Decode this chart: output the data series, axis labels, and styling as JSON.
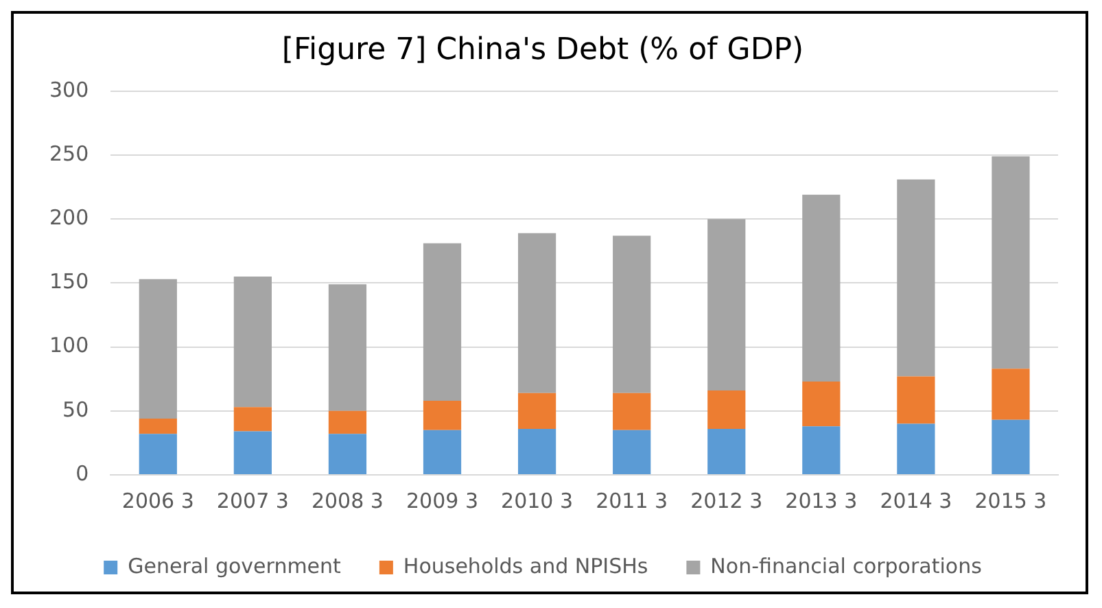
{
  "chart_data": {
    "type": "bar",
    "title": "[Figure 7] China's Debt (% of GDP)",
    "categories": [
      "2006 3",
      "2007 3",
      "2008 3",
      "2009 3",
      "2010 3",
      "2011 3",
      "2012 3",
      "2013 3",
      "2014 3",
      "2015 3"
    ],
    "stacked": true,
    "series": [
      {
        "name": "General government",
        "color": "#5b9bd5",
        "values": [
          32,
          34,
          32,
          35,
          36,
          35,
          36,
          38,
          40,
          43
        ]
      },
      {
        "name": "Households and NPISHs",
        "color": "#ed7d31",
        "values": [
          12,
          19,
          18,
          23,
          28,
          29,
          30,
          35,
          37,
          40
        ]
      },
      {
        "name": "Non-financial corporations",
        "color": "#a5a5a5",
        "values": [
          109,
          102,
          99,
          123,
          125,
          123,
          134,
          146,
          154,
          166
        ]
      }
    ],
    "ylim": [
      0,
      300
    ],
    "yticks": [
      0,
      50,
      100,
      150,
      200,
      250,
      300
    ],
    "grid": "y",
    "legend": "bottom"
  }
}
